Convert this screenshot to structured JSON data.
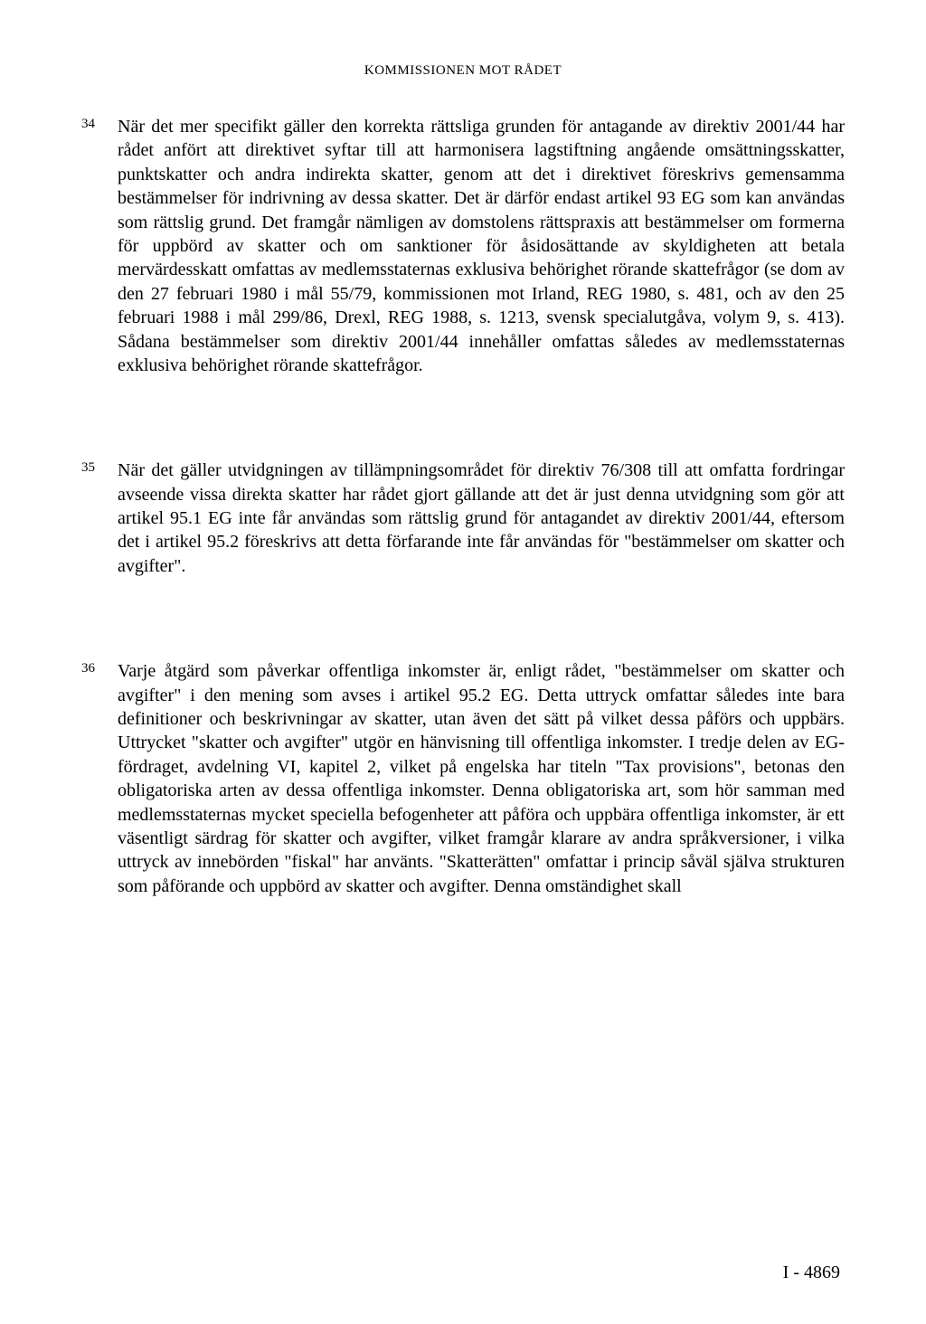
{
  "header": "KOMMISSIONEN MOT RÅDET",
  "paragraphs": [
    {
      "num": "34",
      "text": "När det mer specifikt gäller den korrekta rättsliga grunden för antagande av direktiv 2001/44 har rådet anfört att direktivet syftar till att harmonisera lagstiftning angående omsättningsskatter, punktskatter och andra indirekta skatter, genom att det i direktivet föreskrivs gemensamma bestämmelser för indrivning av dessa skatter. Det är därför endast artikel 93 EG som kan användas som rättslig grund. Det framgår nämligen av domstolens rättspraxis att bestämmelser om formerna för uppbörd av skatter och om sanktioner för åsidosättande av skyldigheten att betala mervärdesskatt omfattas av medlemsstaternas exklusiva behörighet rörande skattefrågor (se dom av den 27 februari 1980 i mål 55/79, kommissionen mot Irland, REG 1980, s. 481, och av den 25 februari 1988 i mål 299/86, Drexl, REG 1988, s. 1213, svensk specialutgåva, volym 9, s. 413). Sådana bestämmelser som direktiv 2001/44 innehåller omfattas således av medlemsstaternas exklusiva behörighet rörande skattefrågor."
    },
    {
      "num": "35",
      "text": "När det gäller utvidgningen av tillämpningsområdet för direktiv 76/308 till att omfatta fordringar avseende vissa direkta skatter har rådet gjort gällande att det är just denna utvidgning som gör att artikel 95.1 EG inte får användas som rättslig grund för antagandet av direktiv 2001/44, eftersom det i artikel 95.2 föreskrivs att detta förfarande inte får användas för \"bestämmelser om skatter och avgifter\"."
    },
    {
      "num": "36",
      "text": "Varje åtgärd som påverkar offentliga inkomster är, enligt rådet, \"bestämmelser om skatter och avgifter\" i den mening som avses i artikel 95.2 EG. Detta uttryck omfattar således inte bara definitioner och beskrivningar av skatter, utan även det sätt på vilket dessa påförs och uppbärs. Uttrycket \"skatter och avgifter\" utgör en hänvisning till offentliga inkomster. I tredje delen av EG-fördraget, avdelning VI, kapitel 2, vilket på engelska har titeln \"Tax provisions\", betonas den obligatoriska arten av dessa offentliga inkomster. Denna obligatoriska art, som hör samman med medlemsstaternas mycket speciella befogenheter att påföra och uppbära offentliga inkomster, är ett väsentligt särdrag för skatter och avgifter, vilket framgår klarare av andra språkversioner, i vilka uttryck av innebörden \"fiskal\" har använts. \"Skatterätten\" omfattar i princip såväl själva strukturen som påförande och uppbörd av skatter och avgifter. Denna omständighet skall"
    }
  ],
  "pageNumber": "I - 4869"
}
